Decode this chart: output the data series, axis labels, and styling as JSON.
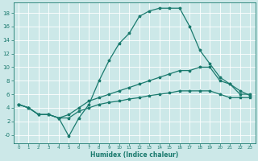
{
  "xlabel": "Humidex (Indice chaleur)",
  "bg_color": "#cce8e8",
  "grid_color": "#ffffff",
  "line_color": "#1a7a6e",
  "xlim": [
    -0.5,
    23.5
  ],
  "ylim": [
    -1.2,
    19.5
  ],
  "xticks": [
    0,
    1,
    2,
    3,
    4,
    5,
    6,
    7,
    8,
    9,
    10,
    11,
    12,
    13,
    14,
    15,
    16,
    17,
    18,
    19,
    20,
    21,
    22,
    23
  ],
  "yticks": [
    0,
    2,
    4,
    6,
    8,
    10,
    12,
    14,
    16,
    18
  ],
  "line1_x": [
    0,
    1,
    2,
    3,
    4,
    5,
    6,
    7,
    8,
    9,
    10,
    11,
    12,
    13,
    14,
    15,
    16,
    17,
    18,
    19,
    20,
    21,
    22,
    23
  ],
  "line1_y": [
    4.5,
    4.0,
    3.0,
    3.0,
    2.5,
    -0.2,
    2.5,
    4.5,
    8.0,
    11.0,
    13.5,
    15.0,
    17.5,
    18.3,
    18.7,
    18.7,
    18.7,
    16.0,
    12.5,
    10.5,
    8.5,
    7.5,
    6.0,
    6.0
  ],
  "line2_x": [
    0,
    1,
    2,
    3,
    4,
    5,
    6,
    7,
    8,
    9,
    10,
    11,
    12,
    13,
    14,
    15,
    16,
    17,
    18,
    19,
    20,
    21,
    22,
    23
  ],
  "line2_y": [
    4.5,
    4.0,
    3.0,
    3.0,
    2.5,
    3.0,
    4.0,
    5.0,
    5.5,
    6.0,
    6.5,
    7.0,
    7.5,
    8.0,
    8.5,
    9.0,
    9.5,
    9.5,
    10.0,
    10.0,
    8.0,
    7.5,
    6.5,
    5.8
  ],
  "line3_x": [
    0,
    1,
    2,
    3,
    4,
    5,
    6,
    7,
    8,
    9,
    10,
    11,
    12,
    13,
    14,
    15,
    16,
    17,
    18,
    19,
    20,
    21,
    22,
    23
  ],
  "line3_y": [
    4.5,
    4.0,
    3.0,
    3.0,
    2.5,
    2.5,
    3.5,
    4.0,
    4.5,
    4.8,
    5.0,
    5.3,
    5.5,
    5.8,
    6.0,
    6.2,
    6.5,
    6.5,
    6.5,
    6.5,
    6.0,
    5.5,
    5.5,
    5.5
  ]
}
